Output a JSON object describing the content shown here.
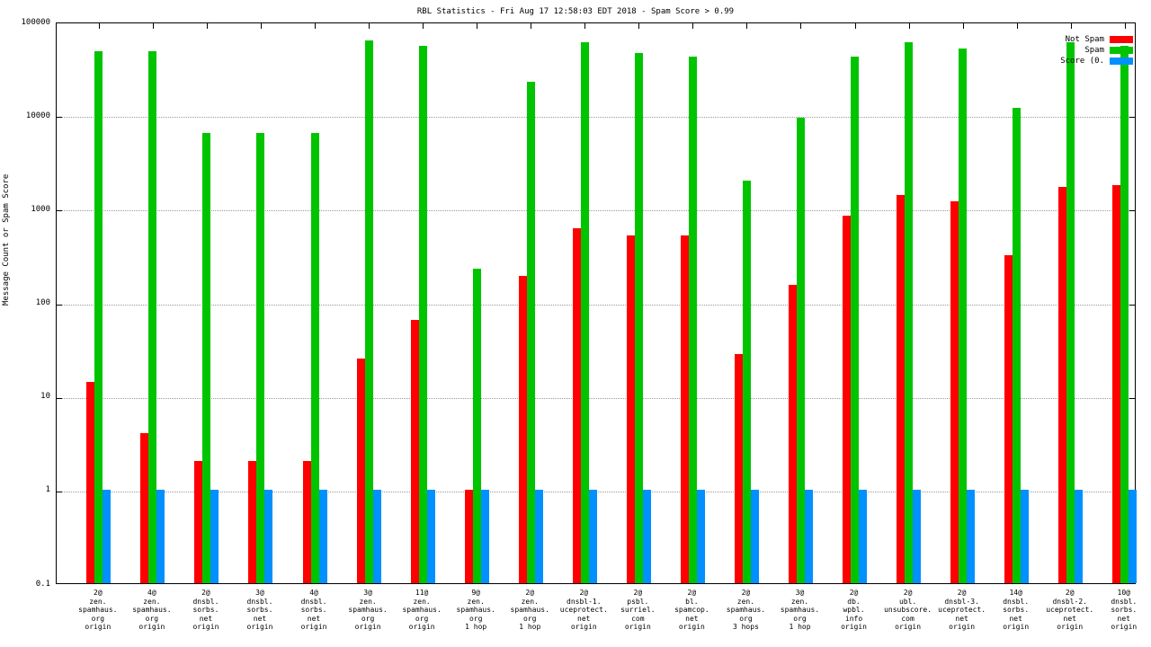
{
  "title": "RBL Statistics - Fri Aug 17 12:58:03 EDT 2018 - Spam Score > 0.99",
  "ylabel": "Message Count or Spam Score",
  "colors": {
    "not_spam": "#ff0000",
    "spam": "#00c400",
    "score": "#0090ff"
  },
  "legend": [
    {
      "label": "Not Spam",
      "color": "#ff0000"
    },
    {
      "label": "Spam",
      "color": "#00c400"
    },
    {
      "label": "Score (0.",
      "color": "#0090ff"
    }
  ],
  "chart_data": {
    "type": "bar",
    "scale": "log",
    "title": "RBL Statistics - Fri Aug 17 12:58:03 EDT 2018 - Spam Score > 0.99",
    "xlabel": "",
    "ylabel": "Message Count or Spam Score",
    "ylim": [
      0.1,
      100000
    ],
    "yticks": [
      "0.1",
      "1",
      "10",
      "100",
      "1000",
      "10000",
      "100000"
    ],
    "grid": "horizontal-dotted",
    "legend_position": "top-right-inside",
    "categories": [
      [
        "2@",
        "zen.",
        "spamhaus.",
        "org",
        "origin"
      ],
      [
        "4@",
        "zen.",
        "spamhaus.",
        "org",
        "origin"
      ],
      [
        "2@",
        "dnsbl.",
        "sorbs.",
        "net",
        "origin"
      ],
      [
        "3@",
        "dnsbl.",
        "sorbs.",
        "net",
        "origin"
      ],
      [
        "4@",
        "dnsbl.",
        "sorbs.",
        "net",
        "origin"
      ],
      [
        "3@",
        "zen.",
        "spamhaus.",
        "org",
        "origin"
      ],
      [
        "11@",
        "zen.",
        "spamhaus.",
        "org",
        "origin"
      ],
      [
        "9@",
        "zen.",
        "spamhaus.",
        "org",
        "1 hop"
      ],
      [
        "2@",
        "zen.",
        "spamhaus.",
        "org",
        "1 hop"
      ],
      [
        "2@",
        "dnsbl-1.",
        "uceprotect.",
        "net",
        "origin"
      ],
      [
        "2@",
        "psbl.",
        "surriel.",
        "com",
        "origin"
      ],
      [
        "2@",
        "bl.",
        "spamcop.",
        "net",
        "origin"
      ],
      [
        "2@",
        "zen.",
        "spamhaus.",
        "org",
        "3 hops"
      ],
      [
        "3@",
        "zen.",
        "spamhaus.",
        "org",
        "1 hop"
      ],
      [
        "2@",
        "db.",
        "wpbl.",
        "info",
        "origin"
      ],
      [
        "2@",
        "ubl.",
        "unsubscore.",
        "com",
        "origin"
      ],
      [
        "2@",
        "dnsbl-3.",
        "uceprotect.",
        "net",
        "origin"
      ],
      [
        "14@",
        "dnsbl.",
        "sorbs.",
        "net",
        "origin"
      ],
      [
        "2@",
        "dnsbl-2.",
        "uceprotect.",
        "net",
        "origin"
      ],
      [
        "10@",
        "dnsbl.",
        "sorbs.",
        "net",
        "origin"
      ]
    ],
    "series": [
      {
        "name": "Not Spam",
        "color": "#ff0000",
        "values": [
          14,
          4,
          2,
          2,
          2,
          25,
          65,
          1,
          190,
          620,
          520,
          520,
          28,
          155,
          850,
          1400,
          1200,
          320,
          1700,
          1800
        ]
      },
      {
        "name": "Spam",
        "color": "#00c400",
        "values": [
          48000,
          48000,
          6500,
          6500,
          6500,
          63000,
          55000,
          230,
          23000,
          60000,
          46000,
          42000,
          2000,
          9300,
          42000,
          60000,
          52000,
          12000,
          60000,
          55000
        ]
      },
      {
        "name": "Score",
        "color": "#0090ff",
        "values": [
          1,
          1,
          1,
          1,
          1,
          1,
          1,
          1,
          1,
          1,
          1,
          1,
          1,
          1,
          1,
          1,
          1,
          1,
          1,
          1
        ]
      }
    ]
  }
}
